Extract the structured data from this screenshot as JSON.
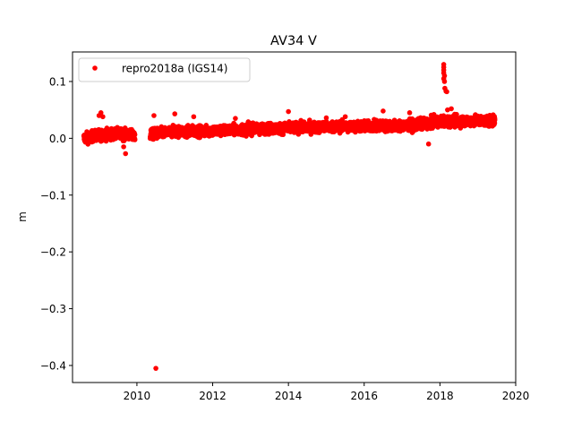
{
  "chart_data": {
    "type": "scatter",
    "title": "AV34 V",
    "xlabel": "",
    "ylabel": "m",
    "xlim": [
      2008.3,
      2020.0
    ],
    "ylim": [
      -0.43,
      0.152
    ],
    "xticks": [
      2010,
      2012,
      2014,
      2016,
      2018,
      2020
    ],
    "xtick_labels": [
      "2010",
      "2012",
      "2014",
      "2016",
      "2018",
      "2020"
    ],
    "yticks": [
      0.1,
      0.0,
      -0.1,
      -0.2,
      -0.3,
      -0.4
    ],
    "ytick_labels": [
      "0.1",
      "0.0",
      "−0.1",
      "−0.2",
      "−0.3",
      "−0.4"
    ],
    "grid": false,
    "legend_position": "upper-left",
    "series": [
      {
        "name": "repro2018a (IGS14)",
        "color": "#ff0000",
        "marker": "circle",
        "trend": {
          "x": [
            2008.6,
            2009.0,
            2009.5,
            2010.0,
            2010.5,
            2011.0,
            2012.0,
            2013.0,
            2014.0,
            2015.0,
            2016.0,
            2017.0,
            2017.5,
            2018.0,
            2018.5,
            2019.0,
            2019.45
          ],
          "y": [
            0.0,
            0.006,
            0.008,
            0.004,
            0.008,
            0.012,
            0.013,
            0.016,
            0.018,
            0.02,
            0.021,
            0.022,
            0.025,
            0.03,
            0.03,
            0.031,
            0.03
          ],
          "spread": 0.009
        },
        "segments": [
          [
            2008.6,
            2009.95
          ],
          [
            2010.35,
            2019.45
          ]
        ],
        "points": [
          [
            2009.0,
            0.04
          ],
          [
            2009.05,
            0.045
          ],
          [
            2009.1,
            0.038
          ],
          [
            2009.7,
            -0.027
          ],
          [
            2009.65,
            -0.015
          ],
          [
            2010.45,
            0.04
          ],
          [
            2010.5,
            -0.405
          ],
          [
            2011.0,
            0.043
          ],
          [
            2011.5,
            0.038
          ],
          [
            2012.6,
            0.035
          ],
          [
            2014.0,
            0.047
          ],
          [
            2015.0,
            0.036
          ],
          [
            2015.5,
            0.038
          ],
          [
            2016.5,
            0.048
          ],
          [
            2017.2,
            0.045
          ],
          [
            2017.7,
            -0.01
          ],
          [
            2018.1,
            0.13
          ],
          [
            2018.1,
            0.125
          ],
          [
            2018.1,
            0.12
          ],
          [
            2018.1,
            0.115
          ],
          [
            2018.12,
            0.11
          ],
          [
            2018.1,
            0.105
          ],
          [
            2018.12,
            0.1
          ],
          [
            2018.13,
            0.088
          ],
          [
            2018.16,
            0.083
          ],
          [
            2018.18,
            0.082
          ],
          [
            2018.2,
            0.05
          ],
          [
            2018.3,
            0.052
          ]
        ]
      }
    ]
  }
}
